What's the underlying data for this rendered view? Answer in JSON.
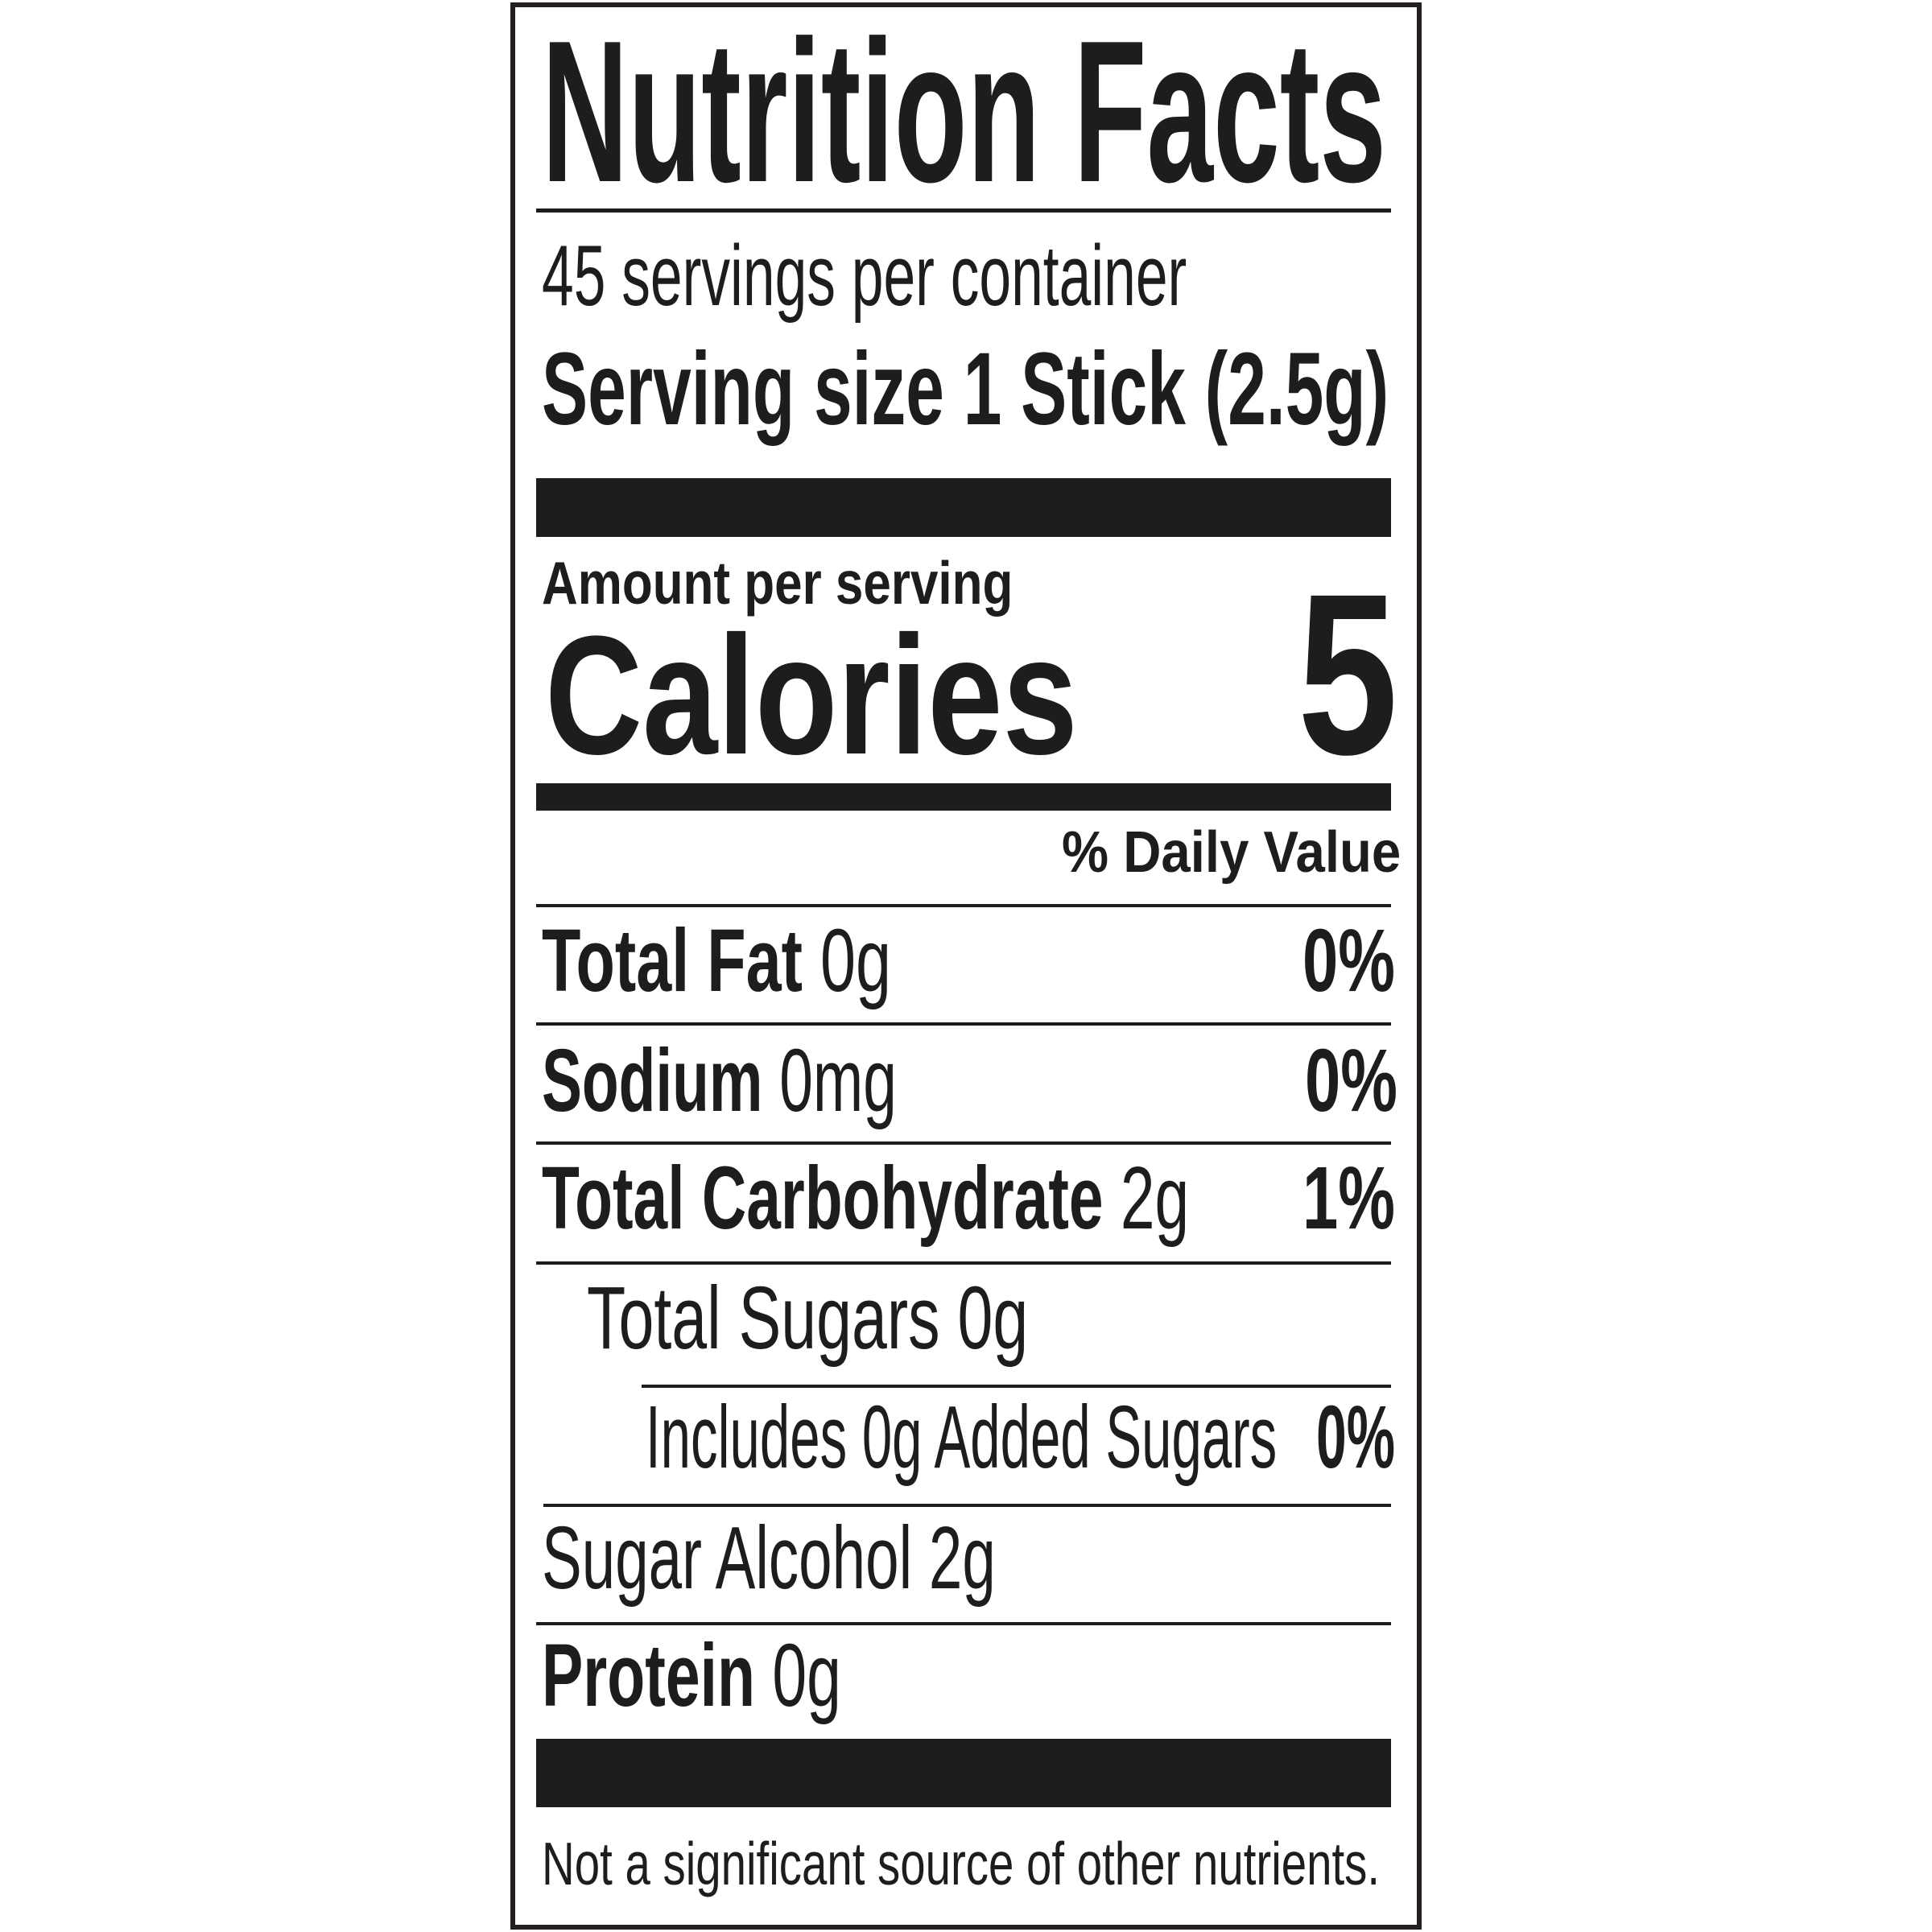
{
  "label": {
    "title": "Nutrition Facts",
    "servings_per_container": "45 servings per container",
    "serving_size": "Serving size 1 Stick (2.5g)",
    "amount_per_serving": "Amount per serving",
    "calories_label": "Calories",
    "calories_value": "5",
    "daily_value_header": "% Daily Value",
    "nutrients": [
      {
        "name": "Total Fat",
        "amount": "0g",
        "dv": "0%"
      },
      {
        "name": "Sodium",
        "amount": "0mg",
        "dv": "0%"
      },
      {
        "name": "Total Carbohydrate",
        "amount": "2g",
        "dv": "1%"
      },
      {
        "name": "Total Sugars 0g",
        "amount": "",
        "dv": ""
      },
      {
        "name": "Includes 0g Added Sugars",
        "amount": "",
        "dv": "0%"
      },
      {
        "name": "Sugar Alcohol 2g",
        "amount": "",
        "dv": ""
      },
      {
        "name": "Protein",
        "amount": "0g",
        "dv": ""
      }
    ],
    "footnote": "Not a significant source of other nutrients."
  }
}
